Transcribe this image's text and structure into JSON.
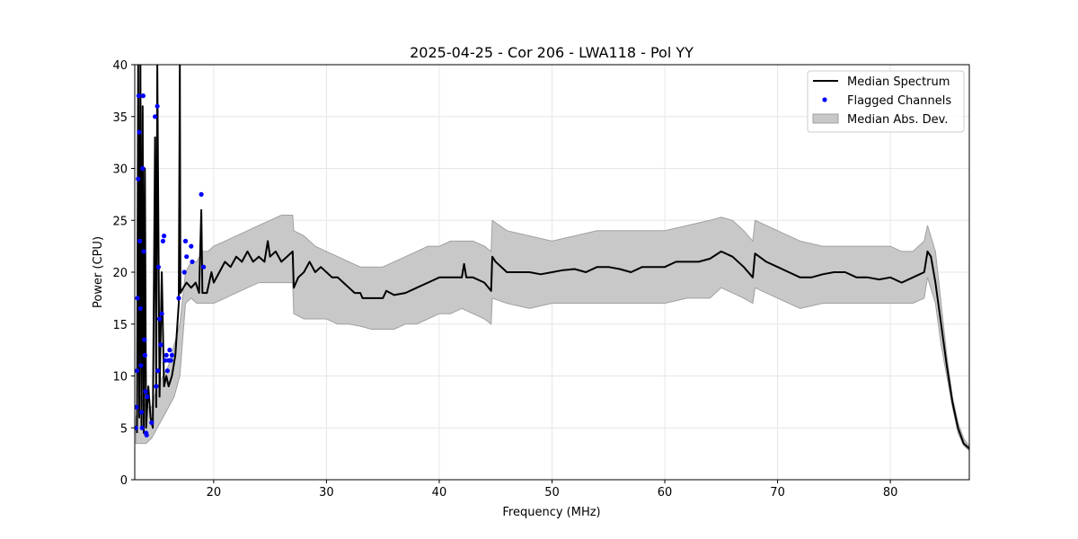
{
  "chart_data": {
    "type": "line",
    "title": "2025-04-25 - Cor 206 - LWA118 - Pol YY",
    "xlabel": "Frequency (MHz)",
    "ylabel": "Power (CPU)",
    "xlim": [
      13.0,
      87.0
    ],
    "ylim": [
      0,
      40
    ],
    "xticks": [
      20,
      30,
      40,
      50,
      60,
      70,
      80
    ],
    "yticks": [
      0,
      5,
      10,
      15,
      20,
      25,
      30,
      35,
      40
    ],
    "grid": true,
    "legend_position": "top-right",
    "legend": {
      "median": "Median Spectrum",
      "flagged": "Flagged Channels",
      "mad": "Median Abs. Dev."
    },
    "colors": {
      "median": "#000000",
      "flagged": "#0000ff",
      "mad_fill": "#c8c8c8",
      "mad_edge": "#a0a0a0",
      "grid": "#e6e6e6"
    },
    "series": [
      {
        "name": "Median Spectrum",
        "kind": "line",
        "points": [
          [
            13.2,
            4.5
          ],
          [
            13.3,
            40
          ],
          [
            13.4,
            6
          ],
          [
            13.5,
            40
          ],
          [
            13.6,
            5
          ],
          [
            13.7,
            36
          ],
          [
            13.8,
            4.5
          ],
          [
            13.9,
            30
          ],
          [
            14.0,
            5
          ],
          [
            14.2,
            9
          ],
          [
            14.4,
            6
          ],
          [
            14.6,
            5
          ],
          [
            14.8,
            33
          ],
          [
            14.9,
            7
          ],
          [
            15.0,
            40
          ],
          [
            15.2,
            8
          ],
          [
            15.4,
            20
          ],
          [
            15.6,
            9
          ],
          [
            15.8,
            10
          ],
          [
            16.0,
            9
          ],
          [
            16.3,
            10
          ],
          [
            16.6,
            12
          ],
          [
            16.9,
            17
          ],
          [
            17.0,
            40
          ],
          [
            17.05,
            18
          ],
          [
            17.3,
            18.5
          ],
          [
            17.6,
            19
          ],
          [
            18.0,
            18.5
          ],
          [
            18.4,
            19
          ],
          [
            18.7,
            18
          ],
          [
            18.9,
            26
          ],
          [
            19.0,
            18
          ],
          [
            19.4,
            18
          ],
          [
            19.8,
            20
          ],
          [
            20.0,
            19
          ],
          [
            20.5,
            20
          ],
          [
            21.0,
            21
          ],
          [
            21.5,
            20.5
          ],
          [
            22.0,
            21.5
          ],
          [
            22.5,
            21
          ],
          [
            23.0,
            22
          ],
          [
            23.5,
            21
          ],
          [
            24.0,
            21.5
          ],
          [
            24.5,
            21
          ],
          [
            24.8,
            23
          ],
          [
            25.0,
            21.5
          ],
          [
            25.5,
            22
          ],
          [
            26.0,
            21
          ],
          [
            26.5,
            21.5
          ],
          [
            27.0,
            22
          ],
          [
            27.1,
            18.5
          ],
          [
            27.5,
            19.5
          ],
          [
            28.0,
            20
          ],
          [
            28.5,
            21
          ],
          [
            29.0,
            20
          ],
          [
            29.5,
            20.5
          ],
          [
            30.0,
            20
          ],
          [
            30.5,
            19.5
          ],
          [
            31.0,
            19.5
          ],
          [
            31.5,
            19
          ],
          [
            32.0,
            18.5
          ],
          [
            32.5,
            18
          ],
          [
            33.0,
            18
          ],
          [
            33.2,
            17.5
          ],
          [
            34.0,
            17.5
          ],
          [
            35.0,
            17.5
          ],
          [
            35.3,
            18.2
          ],
          [
            36.0,
            17.8
          ],
          [
            37.0,
            18
          ],
          [
            38.0,
            18.5
          ],
          [
            39.0,
            19
          ],
          [
            40.0,
            19.5
          ],
          [
            41.0,
            19.5
          ],
          [
            42.0,
            19.5
          ],
          [
            42.2,
            20.8
          ],
          [
            42.4,
            19.5
          ],
          [
            43.0,
            19.5
          ],
          [
            44.0,
            19
          ],
          [
            44.6,
            18.2
          ],
          [
            44.7,
            21.5
          ],
          [
            45.0,
            21
          ],
          [
            46.0,
            20
          ],
          [
            47.0,
            20
          ],
          [
            48.0,
            20
          ],
          [
            49.0,
            19.8
          ],
          [
            50.0,
            20
          ],
          [
            51.0,
            20.2
          ],
          [
            52.0,
            20.3
          ],
          [
            53.0,
            20
          ],
          [
            54.0,
            20.5
          ],
          [
            55.0,
            20.5
          ],
          [
            56.0,
            20.3
          ],
          [
            57.0,
            20
          ],
          [
            58.0,
            20.5
          ],
          [
            59.0,
            20.5
          ],
          [
            60.0,
            20.5
          ],
          [
            61.0,
            21
          ],
          [
            62.0,
            21
          ],
          [
            63.0,
            21
          ],
          [
            64.0,
            21.3
          ],
          [
            65.0,
            22
          ],
          [
            66.0,
            21.5
          ],
          [
            67.0,
            20.5
          ],
          [
            67.8,
            19.5
          ],
          [
            68.0,
            21.8
          ],
          [
            69.0,
            21
          ],
          [
            70.0,
            20.5
          ],
          [
            71.0,
            20
          ],
          [
            72.0,
            19.5
          ],
          [
            73.0,
            19.5
          ],
          [
            74.0,
            19.8
          ],
          [
            75.0,
            20
          ],
          [
            76.0,
            20
          ],
          [
            77.0,
            19.5
          ],
          [
            78.0,
            19.5
          ],
          [
            79.0,
            19.3
          ],
          [
            80.0,
            19.5
          ],
          [
            81.0,
            19
          ],
          [
            82.0,
            19.5
          ],
          [
            83.0,
            20
          ],
          [
            83.3,
            22
          ],
          [
            83.6,
            21.5
          ],
          [
            84.0,
            19
          ],
          [
            84.5,
            15
          ],
          [
            85.0,
            11
          ],
          [
            85.5,
            7.5
          ],
          [
            86.0,
            5
          ],
          [
            86.5,
            3.5
          ],
          [
            87.0,
            3
          ]
        ]
      },
      {
        "name": "Flagged Channels",
        "kind": "scatter",
        "points": [
          [
            13.1,
            5
          ],
          [
            13.15,
            7
          ],
          [
            13.2,
            10.5
          ],
          [
            13.25,
            17.5
          ],
          [
            13.3,
            29
          ],
          [
            13.35,
            37
          ],
          [
            13.4,
            33.5
          ],
          [
            13.45,
            23
          ],
          [
            13.5,
            16.5
          ],
          [
            13.55,
            11
          ],
          [
            13.6,
            6.5
          ],
          [
            13.65,
            5
          ],
          [
            13.7,
            30
          ],
          [
            13.75,
            37
          ],
          [
            13.8,
            22
          ],
          [
            13.85,
            13.5
          ],
          [
            13.9,
            12
          ],
          [
            13.95,
            8.5
          ],
          [
            14.0,
            4.5
          ],
          [
            14.05,
            4.3
          ],
          [
            14.1,
            8
          ],
          [
            14.5,
            5.5
          ],
          [
            14.8,
            35
          ],
          [
            14.9,
            9
          ],
          [
            15.0,
            36
          ],
          [
            15.05,
            10.5
          ],
          [
            15.1,
            20.5
          ],
          [
            15.2,
            15.5
          ],
          [
            15.3,
            13
          ],
          [
            15.4,
            16
          ],
          [
            15.5,
            23
          ],
          [
            15.6,
            23.5
          ],
          [
            15.7,
            11.5
          ],
          [
            15.8,
            12
          ],
          [
            15.9,
            10.5
          ],
          [
            16.0,
            11.5
          ],
          [
            16.1,
            12.5
          ],
          [
            16.2,
            11.5
          ],
          [
            16.3,
            12
          ],
          [
            16.9,
            17.5
          ],
          [
            17.4,
            20
          ],
          [
            17.5,
            23
          ],
          [
            17.6,
            21.5
          ],
          [
            18.0,
            22.5
          ],
          [
            18.1,
            21
          ],
          [
            18.9,
            27.5
          ],
          [
            19.1,
            20.5
          ]
        ]
      },
      {
        "name": "Median Abs. Dev.",
        "kind": "band",
        "x": [
          13.1,
          13.5,
          14.0,
          14.5,
          15.0,
          15.5,
          16.0,
          16.5,
          17.0,
          17.5,
          18.0,
          18.5,
          19.0,
          19.5,
          20.0,
          21.0,
          22.0,
          23.0,
          24.0,
          25.0,
          26.0,
          27.0,
          27.1,
          28.0,
          29.0,
          30.0,
          31.0,
          32.0,
          33.0,
          34.0,
          35.0,
          36.0,
          37.0,
          38.0,
          39.0,
          40.0,
          41.0,
          42.0,
          43.0,
          44.0,
          44.6,
          44.7,
          46.0,
          48.0,
          50.0,
          52.0,
          54.0,
          56.0,
          58.0,
          60.0,
          62.0,
          64.0,
          65.0,
          66.0,
          67.0,
          67.8,
          68.0,
          70.0,
          72.0,
          74.0,
          76.0,
          78.0,
          80.0,
          81.0,
          82.0,
          83.0,
          83.3,
          84.0,
          84.5,
          85.0,
          85.5,
          86.0,
          86.5,
          87.0
        ],
        "upper": [
          6,
          8,
          7,
          7,
          9,
          10,
          11,
          13,
          15,
          20,
          21,
          21,
          22,
          22,
          22.5,
          23,
          23.5,
          24,
          24.5,
          25,
          25.5,
          25.5,
          24,
          23.5,
          22.5,
          22,
          21.5,
          21,
          20.5,
          20.5,
          20.5,
          21,
          21.5,
          22,
          22.5,
          22.5,
          23,
          23,
          23,
          22.5,
          22,
          25,
          24,
          23.5,
          23,
          23.5,
          24,
          24,
          24,
          24,
          24.5,
          25,
          25.3,
          25,
          24,
          23,
          25,
          24,
          23,
          22.5,
          22.5,
          22.5,
          22.5,
          22,
          22,
          23,
          24.5,
          22,
          17,
          12,
          8,
          5.5,
          4,
          3.2
        ],
        "lower": [
          3.5,
          3.5,
          3.5,
          4,
          5,
          6,
          7,
          8,
          10,
          17,
          17.5,
          17,
          17,
          17,
          17,
          17.5,
          18,
          18.5,
          19,
          19,
          19,
          19,
          16,
          15.5,
          15.5,
          15.5,
          15,
          15,
          14.8,
          14.5,
          14.5,
          14.5,
          15,
          15,
          15.5,
          16,
          16,
          16.5,
          16,
          15.5,
          15,
          17.5,
          17,
          16.5,
          17,
          17,
          17,
          17,
          17,
          17,
          17.5,
          17.5,
          18.5,
          18,
          17.5,
          17,
          18.5,
          17.5,
          16.5,
          17,
          17,
          17,
          17,
          17,
          17,
          17.5,
          19.5,
          17,
          13,
          10,
          7,
          4.5,
          3.3,
          2.8
        ]
      }
    ]
  }
}
